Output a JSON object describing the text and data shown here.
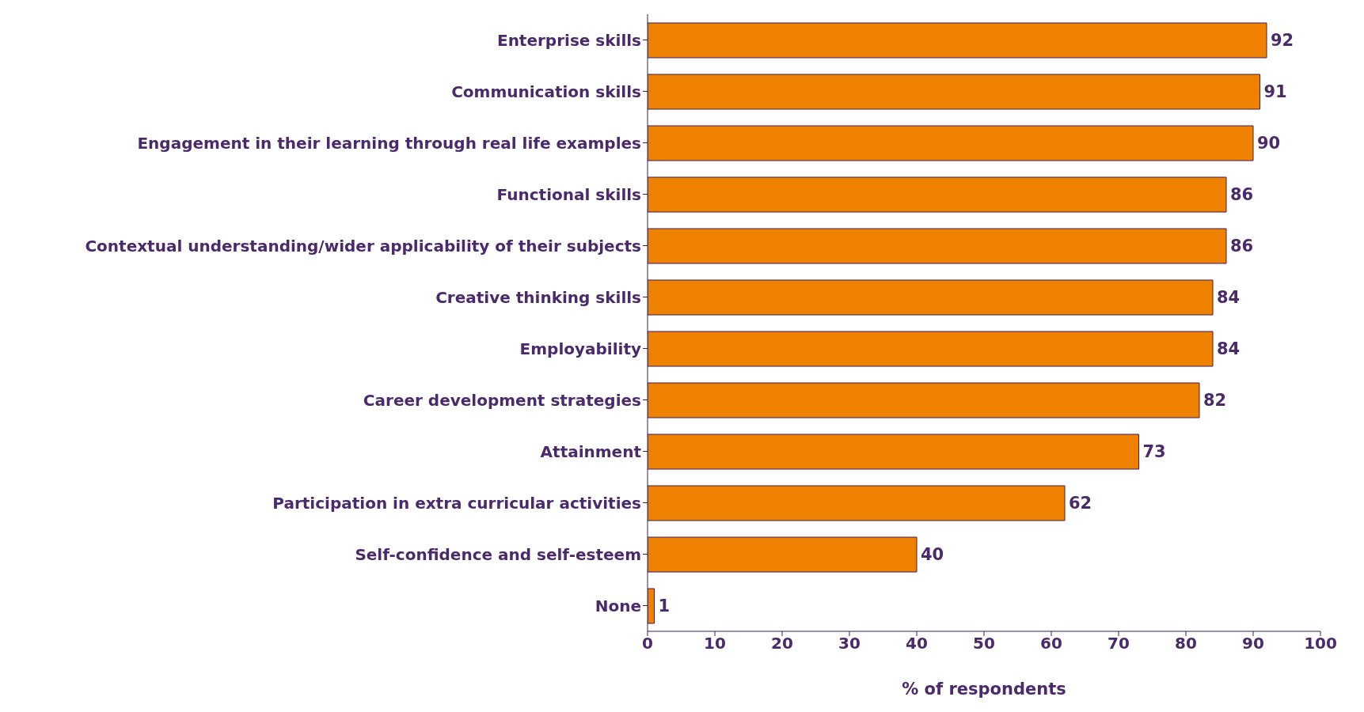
{
  "chart_data": {
    "type": "bar",
    "orientation": "horizontal",
    "xlabel": "% of respondents",
    "categories": [
      "Enterprise skills",
      "Communication skills",
      "Engagement in their learning through real life examples",
      "Functional skills",
      "Contextual understanding/wider applicability of their subjects",
      "Creative thinking skills",
      "Employability",
      "Career development strategies",
      "Attainment",
      "Participation in extra curricular activities",
      "Self-confidence and self-esteem",
      "None"
    ],
    "values": [
      92,
      91,
      90,
      86,
      86,
      84,
      84,
      82,
      73,
      62,
      40,
      1
    ],
    "color": "#ee8100",
    "xlim": [
      0,
      100
    ],
    "xticks": [
      0,
      10,
      20,
      30,
      40,
      50,
      60,
      70,
      80,
      90,
      100
    ],
    "data_labels": true,
    "grid": false
  }
}
